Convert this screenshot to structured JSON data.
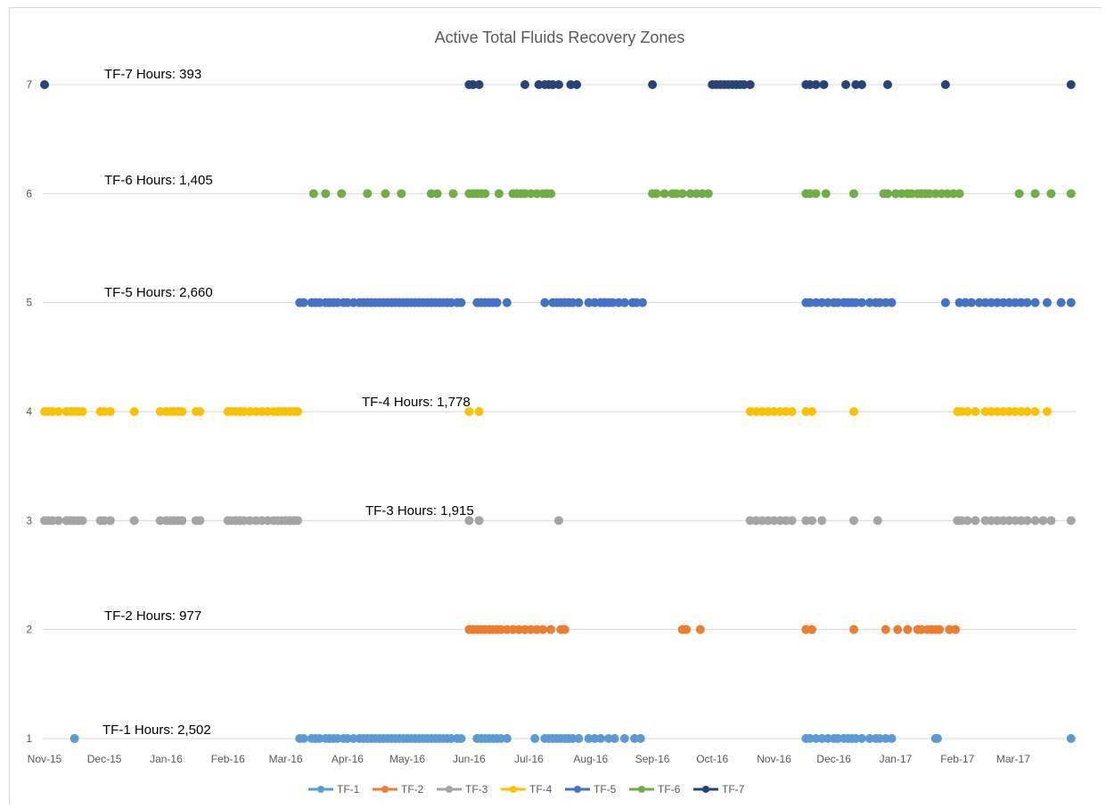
{
  "chart_data": {
    "type": "scatter",
    "title": "Active Total Fluids  Recovery Zones",
    "xlabel": "",
    "ylabel": "",
    "x_axis": {
      "type": "date",
      "min": "2015-11-01",
      "max": "2017-03-31"
    },
    "x_tick_labels": [
      {
        "date": "2015-11-01",
        "label": "Nov-15"
      },
      {
        "date": "2015-12-01",
        "label": "Dec-15"
      },
      {
        "date": "2016-01-01",
        "label": "Jan-16"
      },
      {
        "date": "2016-02-01",
        "label": "Feb-16"
      },
      {
        "date": "2016-03-01",
        "label": "Mar-16"
      },
      {
        "date": "2016-04-01",
        "label": "Apr-16"
      },
      {
        "date": "2016-05-01",
        "label": "May-16"
      },
      {
        "date": "2016-06-01",
        "label": "Jun-16"
      },
      {
        "date": "2016-07-01",
        "label": "Jul-16"
      },
      {
        "date": "2016-08-01",
        "label": "Aug-16"
      },
      {
        "date": "2016-09-01",
        "label": "Sep-16"
      },
      {
        "date": "2016-10-01",
        "label": "Oct-16"
      },
      {
        "date": "2016-11-01",
        "label": "Nov-16"
      },
      {
        "date": "2016-12-01",
        "label": "Dec-16"
      },
      {
        "date": "2017-01-01",
        "label": "Jan-17"
      },
      {
        "date": "2017-02-01",
        "label": "Feb-17"
      },
      {
        "date": "2017-03-01",
        "label": "Mar-17"
      }
    ],
    "y_ticks": [
      1,
      2,
      3,
      4,
      5,
      6,
      7
    ],
    "ylim": [
      1,
      7
    ],
    "grid": "horizontal",
    "legend": "bottom",
    "annotations": [
      {
        "text": "TF-1 Hours: 2,502",
        "series": "TF-1"
      },
      {
        "text": "TF-2 Hours: 977",
        "series": "TF-2"
      },
      {
        "text": "TF-3 Hours: 1,915",
        "series": "TF-3"
      },
      {
        "text": "TF-4 Hours: 1,778",
        "series": "TF-4"
      },
      {
        "text": "TF-5 Hours: 2,660",
        "series": "TF-5"
      },
      {
        "text": "TF-6 Hours: 1,405",
        "series": "TF-6"
      },
      {
        "text": "TF-7 Hours: 393",
        "series": "TF-7"
      }
    ],
    "series": [
      {
        "name": "TF-1",
        "y": 1,
        "color": "#5b9bd5",
        "x": [
          "2015-11-16",
          "2016-03-08",
          "2016-03-10",
          "2016-03-14",
          "2016-03-16",
          "2016-03-18",
          "2016-03-21",
          "2016-03-23",
          "2016-03-25",
          "2016-03-27",
          "2016-03-30",
          "2016-04-01",
          "2016-04-04",
          "2016-04-07",
          "2016-04-09",
          "2016-04-11",
          "2016-04-13",
          "2016-04-15",
          "2016-04-17",
          "2016-04-19",
          "2016-04-21",
          "2016-04-23",
          "2016-04-25",
          "2016-04-27",
          "2016-04-29",
          "2016-05-01",
          "2016-05-03",
          "2016-05-05",
          "2016-05-07",
          "2016-05-09",
          "2016-05-11",
          "2016-05-13",
          "2016-05-15",
          "2016-05-17",
          "2016-05-19",
          "2016-05-21",
          "2016-05-23",
          "2016-05-26",
          "2016-05-28",
          "2016-06-05",
          "2016-06-07",
          "2016-06-09",
          "2016-06-11",
          "2016-06-13",
          "2016-06-15",
          "2016-06-17",
          "2016-06-20",
          "2016-07-04",
          "2016-07-09",
          "2016-07-11",
          "2016-07-13",
          "2016-07-15",
          "2016-07-17",
          "2016-07-19",
          "2016-07-21",
          "2016-07-23",
          "2016-07-26",
          "2016-07-31",
          "2016-08-03",
          "2016-08-06",
          "2016-08-10",
          "2016-08-13",
          "2016-08-18",
          "2016-08-23",
          "2016-08-26",
          "2016-11-17",
          "2016-11-19",
          "2016-11-22",
          "2016-11-25",
          "2016-11-28",
          "2016-12-01",
          "2016-12-03",
          "2016-12-06",
          "2016-12-08",
          "2016-12-10",
          "2016-12-12",
          "2016-12-15",
          "2016-12-19",
          "2016-12-22",
          "2016-12-24",
          "2016-12-27",
          "2016-12-30",
          "2017-01-21",
          "2017-01-22",
          "2017-03-30"
        ]
      },
      {
        "name": "TF-2",
        "y": 2,
        "color": "#ed7d31",
        "x": [
          "2016-06-01",
          "2016-06-03",
          "2016-06-05",
          "2016-06-07",
          "2016-06-09",
          "2016-06-11",
          "2016-06-13",
          "2016-06-15",
          "2016-06-17",
          "2016-06-20",
          "2016-06-23",
          "2016-06-26",
          "2016-06-29",
          "2016-07-02",
          "2016-07-05",
          "2016-07-08",
          "2016-07-12",
          "2016-07-17",
          "2016-07-19",
          "2016-09-16",
          "2016-09-18",
          "2016-09-25",
          "2016-11-17",
          "2016-11-20",
          "2016-12-11",
          "2016-12-27",
          "2017-01-02",
          "2017-01-07",
          "2017-01-12",
          "2017-01-14",
          "2017-01-17",
          "2017-01-19",
          "2017-01-21",
          "2017-01-23",
          "2017-01-28",
          "2017-01-31"
        ]
      },
      {
        "name": "TF-3",
        "y": 3,
        "color": "#a5a5a5",
        "x": [
          "2015-11-01",
          "2015-11-03",
          "2015-11-05",
          "2015-11-08",
          "2015-11-12",
          "2015-11-14",
          "2015-11-16",
          "2015-11-18",
          "2015-11-20",
          "2015-11-29",
          "2015-12-01",
          "2015-12-04",
          "2015-12-16",
          "2015-12-29",
          "2016-01-01",
          "2016-01-03",
          "2016-01-05",
          "2016-01-07",
          "2016-01-09",
          "2016-01-16",
          "2016-01-18",
          "2016-02-01",
          "2016-02-03",
          "2016-02-05",
          "2016-02-07",
          "2016-02-09",
          "2016-02-12",
          "2016-02-15",
          "2016-02-18",
          "2016-02-21",
          "2016-02-24",
          "2016-02-26",
          "2016-02-28",
          "2016-03-01",
          "2016-03-03",
          "2016-03-05",
          "2016-03-07",
          "2016-06-01",
          "2016-06-06",
          "2016-07-16",
          "2016-10-20",
          "2016-10-23",
          "2016-10-26",
          "2016-10-29",
          "2016-11-01",
          "2016-11-04",
          "2016-11-07",
          "2016-11-10",
          "2016-11-17",
          "2016-11-20",
          "2016-11-25",
          "2016-12-11",
          "2016-12-23",
          "2017-02-01",
          "2017-02-03",
          "2017-02-06",
          "2017-02-10",
          "2017-02-15",
          "2017-02-18",
          "2017-02-21",
          "2017-02-24",
          "2017-02-27",
          "2017-03-02",
          "2017-03-05",
          "2017-03-08",
          "2017-03-12",
          "2017-03-16",
          "2017-03-20",
          "2017-03-30"
        ]
      },
      {
        "name": "TF-4",
        "y": 4,
        "color": "#ffc000",
        "x": [
          "2015-11-01",
          "2015-11-03",
          "2015-11-05",
          "2015-11-08",
          "2015-11-12",
          "2015-11-14",
          "2015-11-16",
          "2015-11-18",
          "2015-11-20",
          "2015-11-29",
          "2015-12-01",
          "2015-12-04",
          "2015-12-16",
          "2015-12-29",
          "2016-01-01",
          "2016-01-03",
          "2016-01-05",
          "2016-01-07",
          "2016-01-09",
          "2016-01-16",
          "2016-01-18",
          "2016-02-01",
          "2016-02-03",
          "2016-02-05",
          "2016-02-07",
          "2016-02-09",
          "2016-02-12",
          "2016-02-15",
          "2016-02-18",
          "2016-02-21",
          "2016-02-24",
          "2016-02-26",
          "2016-02-28",
          "2016-03-01",
          "2016-03-03",
          "2016-03-05",
          "2016-03-07",
          "2016-06-01",
          "2016-06-06",
          "2016-10-20",
          "2016-10-23",
          "2016-10-26",
          "2016-10-29",
          "2016-11-01",
          "2016-11-04",
          "2016-11-07",
          "2016-11-10",
          "2016-11-17",
          "2016-11-20",
          "2016-12-11",
          "2017-02-01",
          "2017-02-03",
          "2017-02-06",
          "2017-02-10",
          "2017-02-15",
          "2017-02-18",
          "2017-02-21",
          "2017-02-24",
          "2017-02-27",
          "2017-03-02",
          "2017-03-05",
          "2017-03-08",
          "2017-03-12",
          "2017-03-18"
        ]
      },
      {
        "name": "TF-5",
        "y": 5,
        "color": "#4472c4",
        "x": [
          "2016-03-08",
          "2016-03-10",
          "2016-03-14",
          "2016-03-16",
          "2016-03-18",
          "2016-03-21",
          "2016-03-23",
          "2016-03-25",
          "2016-03-27",
          "2016-03-30",
          "2016-04-01",
          "2016-04-04",
          "2016-04-07",
          "2016-04-09",
          "2016-04-11",
          "2016-04-13",
          "2016-04-15",
          "2016-04-17",
          "2016-04-19",
          "2016-04-21",
          "2016-04-23",
          "2016-04-25",
          "2016-04-27",
          "2016-04-29",
          "2016-05-01",
          "2016-05-03",
          "2016-05-05",
          "2016-05-07",
          "2016-05-09",
          "2016-05-11",
          "2016-05-13",
          "2016-05-15",
          "2016-05-17",
          "2016-05-19",
          "2016-05-21",
          "2016-05-23",
          "2016-05-26",
          "2016-05-28",
          "2016-06-05",
          "2016-06-07",
          "2016-06-09",
          "2016-06-11",
          "2016-06-13",
          "2016-06-15",
          "2016-06-20",
          "2016-07-09",
          "2016-07-13",
          "2016-07-15",
          "2016-07-17",
          "2016-07-19",
          "2016-07-21",
          "2016-07-23",
          "2016-07-26",
          "2016-07-31",
          "2016-08-03",
          "2016-08-06",
          "2016-08-08",
          "2016-08-10",
          "2016-08-12",
          "2016-08-15",
          "2016-08-18",
          "2016-08-22",
          "2016-08-24",
          "2016-08-27",
          "2016-11-17",
          "2016-11-19",
          "2016-11-22",
          "2016-11-25",
          "2016-11-28",
          "2016-12-01",
          "2016-12-03",
          "2016-12-06",
          "2016-12-08",
          "2016-12-10",
          "2016-12-12",
          "2016-12-15",
          "2016-12-19",
          "2016-12-22",
          "2016-12-24",
          "2016-12-27",
          "2016-12-30",
          "2017-01-26",
          "2017-02-02",
          "2017-02-05",
          "2017-02-08",
          "2017-02-12",
          "2017-02-15",
          "2017-02-18",
          "2017-02-21",
          "2017-02-24",
          "2017-02-27",
          "2017-03-02",
          "2017-03-05",
          "2017-03-08",
          "2017-03-12",
          "2017-03-18",
          "2017-03-25",
          "2017-03-30"
        ]
      },
      {
        "name": "TF-6",
        "y": 6,
        "color": "#70ad47",
        "x": [
          "2016-03-15",
          "2016-03-21",
          "2016-03-29",
          "2016-04-11",
          "2016-04-20",
          "2016-04-28",
          "2016-05-13",
          "2016-05-16",
          "2016-05-24",
          "2016-06-01",
          "2016-06-03",
          "2016-06-05",
          "2016-06-07",
          "2016-06-09",
          "2016-06-16",
          "2016-06-23",
          "2016-06-25",
          "2016-06-27",
          "2016-06-29",
          "2016-07-02",
          "2016-07-05",
          "2016-07-08",
          "2016-07-10",
          "2016-07-12",
          "2016-09-01",
          "2016-09-03",
          "2016-09-07",
          "2016-09-11",
          "2016-09-13",
          "2016-09-16",
          "2016-09-20",
          "2016-09-23",
          "2016-09-26",
          "2016-09-29",
          "2016-11-17",
          "2016-11-19",
          "2016-11-22",
          "2016-11-27",
          "2016-12-11",
          "2016-12-26",
          "2016-12-28",
          "2017-01-01",
          "2017-01-04",
          "2017-01-07",
          "2017-01-09",
          "2017-01-12",
          "2017-01-14",
          "2017-01-16",
          "2017-01-18",
          "2017-01-21",
          "2017-01-24",
          "2017-01-27",
          "2017-01-30",
          "2017-02-02",
          "2017-03-04",
          "2017-03-12",
          "2017-03-20",
          "2017-03-30"
        ]
      },
      {
        "name": "TF-7",
        "y": 7,
        "color": "#264478",
        "x": [
          "2015-11-01",
          "2016-06-01",
          "2016-06-03",
          "2016-06-06",
          "2016-06-29",
          "2016-07-06",
          "2016-07-09",
          "2016-07-11",
          "2016-07-13",
          "2016-07-16",
          "2016-07-22",
          "2016-07-25",
          "2016-09-01",
          "2016-10-01",
          "2016-10-03",
          "2016-10-05",
          "2016-10-07",
          "2016-10-09",
          "2016-10-11",
          "2016-10-13",
          "2016-10-15",
          "2016-10-17",
          "2016-10-20",
          "2016-11-17",
          "2016-11-19",
          "2016-11-22",
          "2016-11-26",
          "2016-12-07",
          "2016-12-12",
          "2016-12-15",
          "2016-12-28",
          "2017-01-26",
          "2017-03-30"
        ]
      }
    ]
  }
}
